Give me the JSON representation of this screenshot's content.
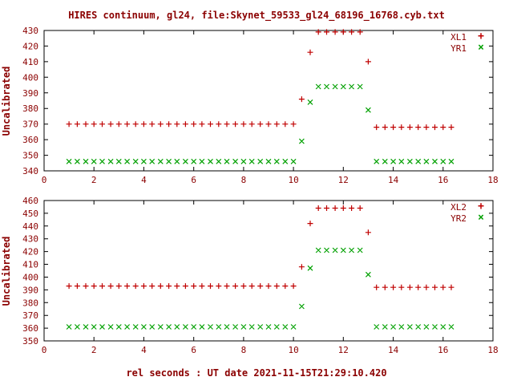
{
  "title": "HIRES continuum, gl24, file:Skynet_59533_gl24_68196_16768.cyb.txt",
  "xlabel": "rel seconds : UT date 2021-11-15T21:29:10.420",
  "colors": {
    "red": "#c00000",
    "green": "#00a000",
    "text": "#8b0000",
    "axis": "#000000"
  },
  "chart_data": [
    {
      "type": "scatter",
      "panel": "top",
      "ylabel": "Uncalibrated",
      "xlim": [
        0,
        18
      ],
      "ylim": [
        340,
        430
      ],
      "xtick_step": 2,
      "ytick_step": 10,
      "grid": false,
      "legend_position": "top-right",
      "x": [
        1,
        1.33,
        1.67,
        2,
        2.33,
        2.67,
        3,
        3.33,
        3.67,
        4,
        4.33,
        4.67,
        5,
        5.33,
        5.67,
        6,
        6.33,
        6.67,
        7,
        7.33,
        7.67,
        8,
        8.33,
        8.67,
        9,
        9.33,
        9.67,
        10,
        10.33,
        10.67,
        11,
        11.33,
        11.67,
        12,
        12.33,
        12.67,
        13,
        13.33,
        13.67,
        14,
        14.33,
        14.67,
        15,
        15.33,
        15.67,
        16,
        16.33
      ],
      "series": [
        {
          "name": "XL1",
          "marker": "plus",
          "color": "#c00000",
          "values": [
            370,
            370,
            370,
            370,
            370,
            370,
            370,
            370,
            370,
            370,
            370,
            370,
            370,
            370,
            370,
            370,
            370,
            370,
            370,
            370,
            370,
            370,
            370,
            370,
            370,
            370,
            370,
            370,
            386,
            416,
            429,
            429,
            429,
            429,
            429,
            429,
            410,
            368,
            368,
            368,
            368,
            368,
            368,
            368,
            368,
            368,
            368
          ]
        },
        {
          "name": "YR1",
          "marker": "cross",
          "color": "#00a000",
          "values": [
            346,
            346,
            346,
            346,
            346,
            346,
            346,
            346,
            346,
            346,
            346,
            346,
            346,
            346,
            346,
            346,
            346,
            346,
            346,
            346,
            346,
            346,
            346,
            346,
            346,
            346,
            346,
            346,
            359,
            384,
            394,
            394,
            394,
            394,
            394,
            394,
            379,
            346,
            346,
            346,
            346,
            346,
            346,
            346,
            346,
            346,
            346
          ]
        }
      ]
    },
    {
      "type": "scatter",
      "panel": "bottom",
      "ylabel": "Uncalibrated",
      "xlim": [
        0,
        18
      ],
      "ylim": [
        350,
        460
      ],
      "xtick_step": 2,
      "ytick_step": 10,
      "grid": false,
      "legend_position": "top-right",
      "x": [
        1,
        1.33,
        1.67,
        2,
        2.33,
        2.67,
        3,
        3.33,
        3.67,
        4,
        4.33,
        4.67,
        5,
        5.33,
        5.67,
        6,
        6.33,
        6.67,
        7,
        7.33,
        7.67,
        8,
        8.33,
        8.67,
        9,
        9.33,
        9.67,
        10,
        10.33,
        10.67,
        11,
        11.33,
        11.67,
        12,
        12.33,
        12.67,
        13,
        13.33,
        13.67,
        14,
        14.33,
        14.67,
        15,
        15.33,
        15.67,
        16,
        16.33
      ],
      "series": [
        {
          "name": "XL2",
          "marker": "plus",
          "color": "#c00000",
          "values": [
            393,
            393,
            393,
            393,
            393,
            393,
            393,
            393,
            393,
            393,
            393,
            393,
            393,
            393,
            393,
            393,
            393,
            393,
            393,
            393,
            393,
            393,
            393,
            393,
            393,
            393,
            393,
            393,
            408,
            442,
            454,
            454,
            454,
            454,
            454,
            454,
            435,
            392,
            392,
            392,
            392,
            392,
            392,
            392,
            392,
            392,
            392
          ]
        },
        {
          "name": "YR2",
          "marker": "cross",
          "color": "#00a000",
          "values": [
            361,
            361,
            361,
            361,
            361,
            361,
            361,
            361,
            361,
            361,
            361,
            361,
            361,
            361,
            361,
            361,
            361,
            361,
            361,
            361,
            361,
            361,
            361,
            361,
            361,
            361,
            361,
            361,
            377,
            407,
            421,
            421,
            421,
            421,
            421,
            421,
            402,
            361,
            361,
            361,
            361,
            361,
            361,
            361,
            361,
            361,
            361
          ]
        }
      ]
    }
  ]
}
